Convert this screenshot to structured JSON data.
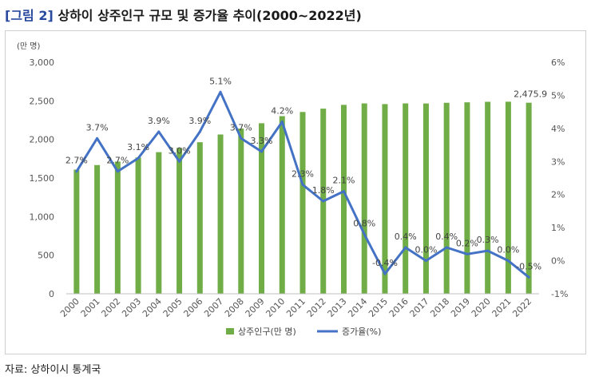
{
  "figure": {
    "tag": "[그림 2]",
    "title": "상하이 상주인구 규모 및 증가율 추이(2000~2022년)",
    "source": "자료: 상하이시 통계국"
  },
  "chart_data": {
    "type": "bar+line",
    "categories": [
      "2000",
      "2001",
      "2002",
      "2003",
      "2004",
      "2005",
      "2006",
      "2007",
      "2008",
      "2009",
      "2010",
      "2011",
      "2012",
      "2013",
      "2014",
      "2015",
      "2016",
      "2017",
      "2018",
      "2019",
      "2020",
      "2021",
      "2022"
    ],
    "series": [
      {
        "name": "상주인구(만 명)",
        "type": "bar",
        "axis": "left",
        "color": "#70ad47",
        "values": [
          1609,
          1668,
          1713,
          1766,
          1835,
          1890,
          1964,
          2064,
          2141,
          2210,
          2302,
          2356,
          2399,
          2448,
          2467,
          2458,
          2467,
          2466,
          2475,
          2481,
          2488,
          2489,
          2475.9
        ]
      },
      {
        "name": "증가율(%)",
        "type": "line",
        "axis": "right",
        "color": "#4472c4",
        "values": [
          2.7,
          3.7,
          2.7,
          3.1,
          3.9,
          3.0,
          3.9,
          5.1,
          3.7,
          3.3,
          4.2,
          2.3,
          1.8,
          2.1,
          0.8,
          -0.4,
          0.4,
          0.0,
          0.4,
          0.2,
          0.3,
          0.0,
          -0.5
        ],
        "labels": [
          "2.7%",
          "3.7%",
          "2.7%",
          "3.1%",
          "3.9%",
          "3.0%",
          "3.9%",
          "5.1%",
          "3.7%",
          "3.3%",
          "4.2%",
          "2.3%",
          "1.8%",
          "2.1%",
          "0.8%",
          "-0.4%",
          "0.4%",
          "0.0%",
          "0.4%",
          "0.2%",
          "0.3%",
          "0.0%",
          "-0.5%"
        ]
      }
    ],
    "bar_end_label": "2,475.9",
    "y_left": {
      "unit": "(만 명)",
      "ylim": [
        0,
        3000
      ],
      "ticks": [
        "0",
        "500",
        "1,000",
        "1,500",
        "2,000",
        "2,500",
        "3,000"
      ]
    },
    "y_right": {
      "ylim": [
        -1,
        6
      ],
      "ticks": [
        "-1%",
        "0%",
        "1%",
        "2%",
        "3%",
        "4%",
        "5%",
        "6%"
      ]
    },
    "grid": false,
    "legend_position": "bottom"
  }
}
